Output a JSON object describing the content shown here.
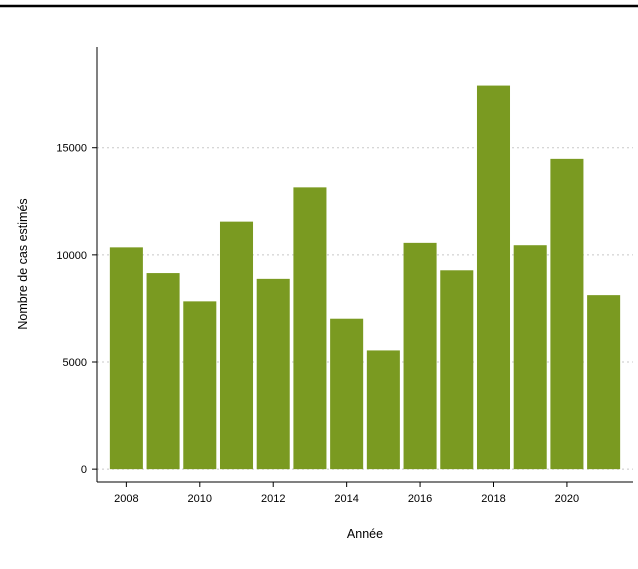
{
  "chart_data": {
    "type": "bar",
    "xlabel": "Année",
    "ylabel": "Nombre de cas estimés",
    "x": [
      2008,
      2009,
      2010,
      2011,
      2012,
      2013,
      2014,
      2015,
      2016,
      2017,
      2018,
      2019,
      2020,
      2021
    ],
    "values": [
      10350,
      9150,
      7830,
      11550,
      8880,
      13150,
      7020,
      5540,
      10560,
      9280,
      17900,
      10450,
      14480,
      8120
    ],
    "xticks": [
      "2008",
      "2010",
      "2012",
      "2014",
      "2016",
      "2018",
      "2020"
    ],
    "yticks": [
      "0",
      "5000",
      "10000",
      "15000"
    ],
    "ylim": [
      -600,
      19700
    ],
    "xlim": [
      2007.2,
      2021.8
    ],
    "grid": "horizontal dotted",
    "bar_color": "#7a9a21",
    "grid_color": "#c8c8c8"
  }
}
